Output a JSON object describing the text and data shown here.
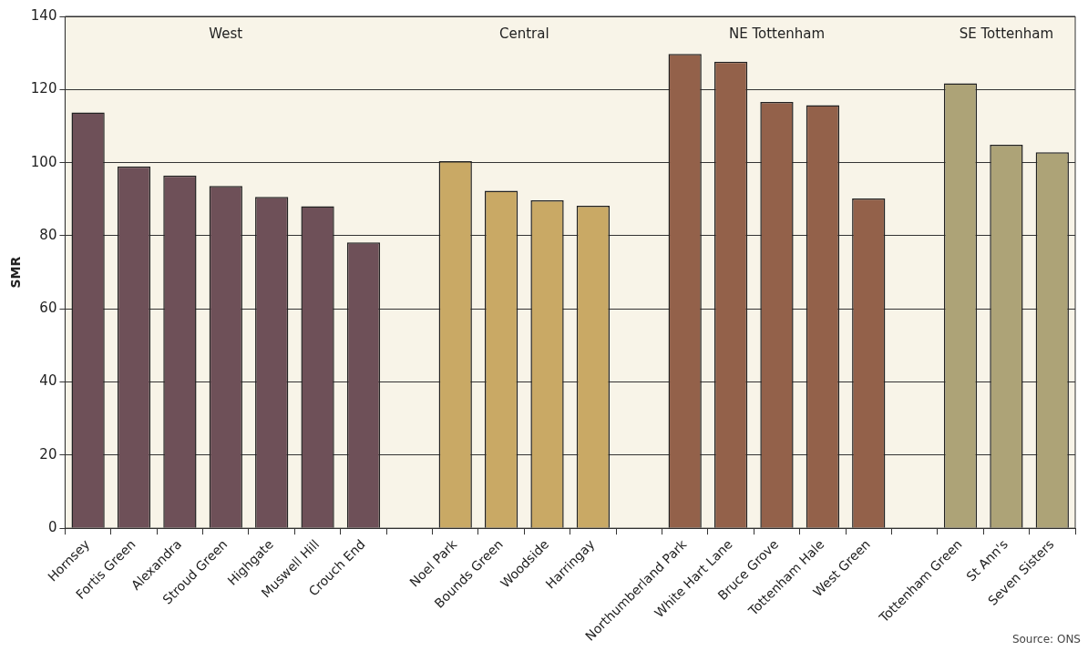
{
  "chart_data": {
    "type": "bar",
    "ylabel": "SMR",
    "categories": [
      "Hornsey",
      "Fortis Green",
      "Alexandra",
      "Stroud Green",
      "Highgate",
      "Muswell Hill",
      "Crouch End",
      null,
      "Noel Park",
      "Bounds Green",
      "Woodside",
      "Harringay",
      null,
      "Northumberland Park",
      "White Hart Lane",
      "Bruce Grove",
      "Tottenham Hale",
      "West Green",
      null,
      "Tottenham Green",
      "St Ann's",
      "Seven Sisters"
    ],
    "values": [
      113.7,
      99.0,
      96.5,
      93.6,
      90.6,
      88.1,
      78.2,
      null,
      100.4,
      92.3,
      89.7,
      88.2,
      null,
      129.7,
      127.6,
      116.6,
      115.7,
      90.2,
      null,
      121.7,
      104.9,
      102.8
    ],
    "colors": [
      "#6e5058",
      "#6e5058",
      "#6e5058",
      "#6e5058",
      "#6e5058",
      "#6e5058",
      "#6e5058",
      null,
      "#c9a965",
      "#c9a965",
      "#c9a965",
      "#c9a965",
      null,
      "#93614a",
      "#93614a",
      "#93614a",
      "#93614a",
      "#93614a",
      null,
      "#ada377",
      "#ada377",
      "#ada377"
    ],
    "ylim": [
      0,
      140
    ],
    "yticks": [
      0,
      20,
      40,
      60,
      80,
      100,
      120,
      140
    ],
    "grid": "y",
    "legend": false,
    "annotations": [
      "West",
      "Central",
      "NE Tottenham",
      "SE Tottenham",
      "Source: ONS"
    ]
  }
}
